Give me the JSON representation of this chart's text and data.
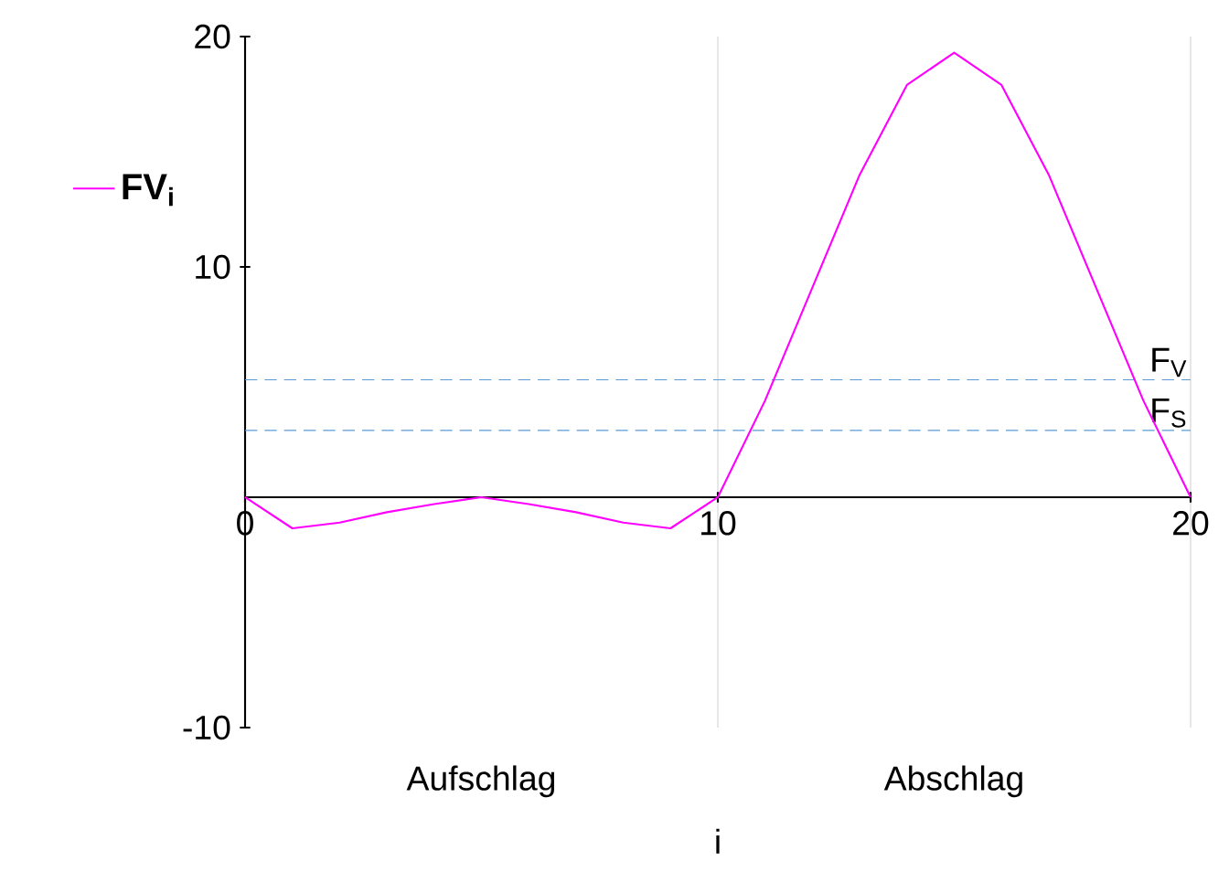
{
  "chart_data": {
    "type": "line",
    "xlabel": "i",
    "x": [
      0,
      1,
      2,
      3,
      4,
      5,
      6,
      7,
      8,
      9,
      10,
      11,
      12,
      13,
      14,
      15,
      16,
      17,
      18,
      19,
      20
    ],
    "series": [
      {
        "name": "**FV**$_{i}$",
        "color": "#ff00ff",
        "values": [
          0,
          -1.35,
          -1.1,
          -0.65,
          -0.3,
          0,
          -0.3,
          -0.65,
          -1.1,
          -1.35,
          0,
          4.2,
          9.1,
          14.0,
          17.9,
          19.3,
          17.9,
          14.0,
          9.1,
          4.2,
          0
        ]
      }
    ],
    "xlim": [
      0,
      20
    ],
    "xticks": [
      0,
      10,
      20
    ],
    "ylim": [
      -10,
      20
    ],
    "yticks": [
      -10,
      10,
      20
    ],
    "grid": "x",
    "legend": "left",
    "ref_lines": [
      {
        "axis": "y",
        "value": 5.1,
        "label": "F$_{V}$",
        "color": "#5b9bd5",
        "line_style": "dashed"
      },
      {
        "axis": "y",
        "value": 2.9,
        "label": "F$_{S}$",
        "color": "#5b9bd5",
        "line_style": "dashed"
      }
    ],
    "annotations": [
      "Aufschlag",
      "Abschlag"
    ]
  }
}
